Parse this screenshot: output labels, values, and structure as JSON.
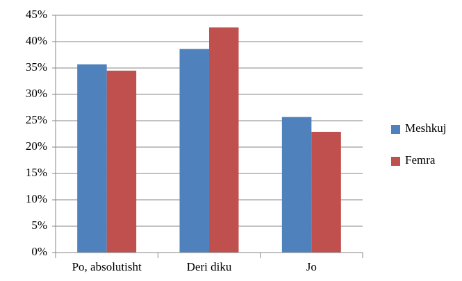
{
  "chart_data": {
    "type": "bar",
    "categories": [
      "Po, absolutisht",
      "Deri diku",
      "Jo"
    ],
    "series": [
      {
        "name": "Meshkuj",
        "color": "#4f81bd",
        "values": [
          35.7,
          38.6,
          25.7
        ]
      },
      {
        "name": "Femra",
        "color": "#c0504d",
        "values": [
          34.5,
          42.7,
          22.9
        ]
      }
    ],
    "ylim": [
      0,
      45
    ],
    "yticks": [
      {
        "value": 0,
        "label": "0%"
      },
      {
        "value": 5,
        "label": "5%"
      },
      {
        "value": 10,
        "label": "10%"
      },
      {
        "value": 15,
        "label": "15%"
      },
      {
        "value": 20,
        "label": "20%"
      },
      {
        "value": 25,
        "label": "25%"
      },
      {
        "value": 30,
        "label": "30%"
      },
      {
        "value": 35,
        "label": "35%"
      },
      {
        "value": 40,
        "label": "40%"
      },
      {
        "value": 45,
        "label": "45%"
      }
    ],
    "grid": true,
    "legend": "right"
  }
}
